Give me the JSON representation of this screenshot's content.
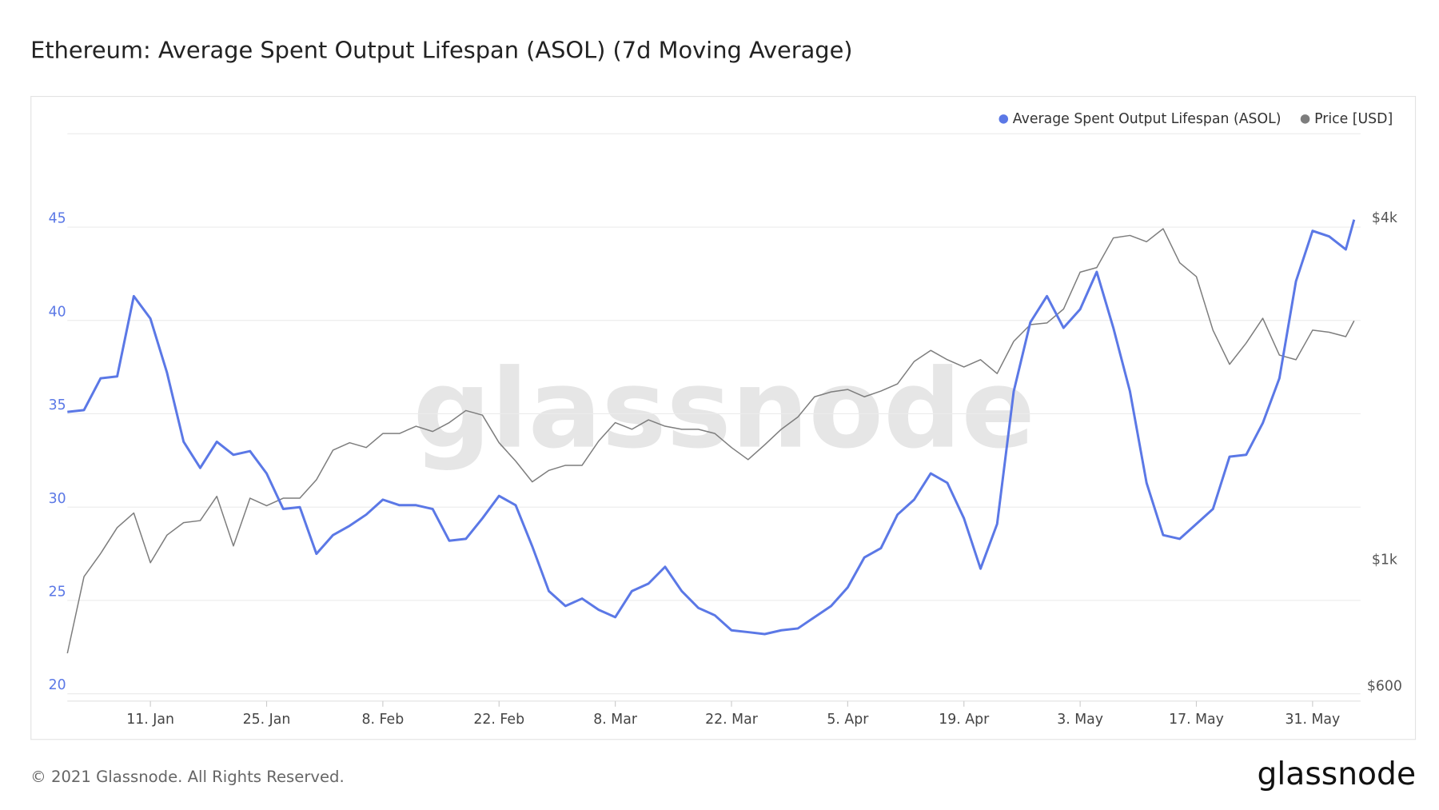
{
  "chart_data": {
    "type": "line",
    "title": "Ethereum: Average Spent Output Lifespan (ASOL) (7d Moving Average)",
    "watermark": "glassnode",
    "x": [
      1,
      3,
      5,
      7,
      9,
      11,
      13,
      15,
      17,
      19,
      21,
      23,
      25,
      27,
      29,
      31,
      33,
      35,
      37,
      39,
      41,
      43,
      45,
      47,
      49,
      51,
      53,
      55,
      57,
      59,
      61,
      63,
      65,
      67,
      69,
      71,
      73,
      75,
      77,
      79,
      81,
      83,
      85,
      87,
      89,
      91,
      93,
      95,
      97,
      99,
      101,
      103,
      105,
      107,
      109,
      111,
      113,
      115,
      117,
      119,
      121,
      123,
      125,
      127,
      129,
      131,
      133,
      135,
      137,
      139,
      141,
      143,
      145,
      147,
      149,
      151,
      153,
      155,
      156
    ],
    "xlim": [
      1,
      156
    ],
    "xticks": [
      {
        "value": 11,
        "label": "11. Jan"
      },
      {
        "value": 25,
        "label": "25. Jan"
      },
      {
        "value": 39,
        "label": "8. Feb"
      },
      {
        "value": 53,
        "label": "22. Feb"
      },
      {
        "value": 67,
        "label": "8. Mar"
      },
      {
        "value": 81,
        "label": "22. Mar"
      },
      {
        "value": 95,
        "label": "5. Apr"
      },
      {
        "value": 109,
        "label": "19. Apr"
      },
      {
        "value": 123,
        "label": "3. May"
      },
      {
        "value": 137,
        "label": "17. May"
      },
      {
        "value": 151,
        "label": "31. May"
      }
    ],
    "ylim": [
      20,
      50
    ],
    "yticks": [
      20,
      25,
      30,
      35,
      40,
      45
    ],
    "y2lim": [
      600,
      5800
    ],
    "y2scale": "log",
    "y2ticks": [
      {
        "value": 600,
        "label": "$600"
      },
      {
        "value": 1000,
        "label": "$1k"
      },
      {
        "value": 4000,
        "label": "$4k"
      }
    ],
    "grid": true,
    "legend": "top-right",
    "series": [
      {
        "name": "Average Spent Output Lifespan (ASOL)",
        "color": "#5b78e6",
        "values": [
          35.1,
          35.2,
          36.9,
          37.0,
          41.3,
          40.1,
          37.2,
          33.5,
          32.1,
          33.5,
          32.8,
          33.0,
          31.8,
          29.9,
          30.0,
          27.5,
          28.5,
          29.0,
          29.6,
          30.4,
          30.1,
          30.1,
          29.9,
          28.2,
          28.3,
          29.4,
          30.6,
          30.1,
          27.9,
          25.5,
          24.7,
          25.1,
          24.5,
          24.1,
          25.5,
          25.9,
          26.8,
          25.5,
          24.6,
          24.2,
          23.4,
          23.3,
          23.2,
          23.4,
          23.5,
          24.1,
          24.7,
          25.7,
          27.3,
          27.8,
          29.6,
          30.4,
          31.8,
          31.3,
          29.4,
          26.7,
          29.1,
          36.2,
          39.9,
          41.3,
          39.6,
          40.6,
          42.6,
          39.6,
          36.2,
          31.3,
          28.5,
          28.3,
          29.1,
          29.9,
          32.7,
          32.8,
          34.5,
          36.9,
          42.1,
          44.8,
          44.5,
          43.8,
          45.4
        ]
      },
      {
        "name": "Price [USD]",
        "color": "#7d7d7d",
        "axis": "y2",
        "values": [
          707,
          964,
          1059,
          1176,
          1248,
          1020,
          1141,
          1200,
          1210,
          1335,
          1092,
          1325,
          1285,
          1325,
          1325,
          1428,
          1610,
          1659,
          1627,
          1722,
          1722,
          1774,
          1736,
          1800,
          1890,
          1855,
          1659,
          1540,
          1416,
          1483,
          1514,
          1514,
          1670,
          1800,
          1752,
          1820,
          1774,
          1752,
          1752,
          1722,
          1627,
          1549,
          1645,
          1752,
          1841,
          1998,
          2038,
          2058,
          1998,
          2045,
          2106,
          2305,
          2412,
          2322,
          2255,
          2322,
          2196,
          2502,
          2677,
          2695,
          2851,
          3311,
          3374,
          3804,
          3842,
          3745,
          3948,
          3438,
          3252,
          2617,
          2279,
          2484,
          2747,
          2366,
          2322,
          2617,
          2596,
          2550,
          2718
        ]
      }
    ]
  },
  "footer": {
    "copyright": "© 2021 Glassnode. All Rights Reserved.",
    "logo": "glassnode"
  }
}
